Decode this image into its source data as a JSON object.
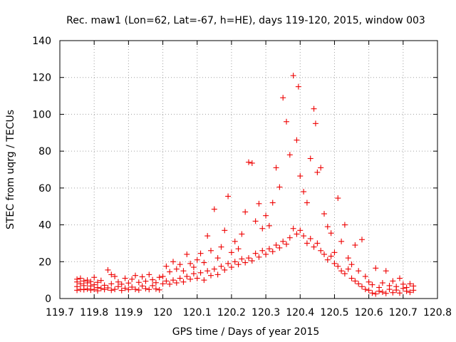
{
  "chart_data": {
    "type": "scatter",
    "title": "Rec. maw1 (Lon=62, Lat=-67, h=HE), days 119-120, 2015, window 003",
    "xlabel": "GPS time / Days of year 2015",
    "ylabel": "STEC from uqrg / TECUs",
    "xlim": [
      119.7,
      120.8
    ],
    "ylim": [
      0,
      140
    ],
    "xticks": [
      119.7,
      119.8,
      119.9,
      120.0,
      120.1,
      120.2,
      120.3,
      120.4,
      120.5,
      120.6,
      120.7,
      120.8
    ],
    "xtick_labels": [
      "119.7",
      "119.8",
      "119.9",
      "120",
      "120.1",
      "120.2",
      "120.3",
      "120.4",
      "120.5",
      "120.6",
      "120.7",
      "120.8"
    ],
    "yticks": [
      0,
      20,
      40,
      60,
      80,
      100,
      120,
      140
    ],
    "ytick_labels": [
      "0",
      "20",
      "40",
      "60",
      "80",
      "100",
      "120",
      "140"
    ],
    "grid": true,
    "marker": "+",
    "color": "#ee0000",
    "series": [
      {
        "name": "STEC",
        "points": [
          [
            119.75,
            4.5
          ],
          [
            119.75,
            6.5
          ],
          [
            119.75,
            9.0
          ],
          [
            119.75,
            10.5
          ],
          [
            119.76,
            5.0
          ],
          [
            119.76,
            8.0
          ],
          [
            119.76,
            11.0
          ],
          [
            119.77,
            4.8
          ],
          [
            119.77,
            7.0
          ],
          [
            119.77,
            9.5
          ],
          [
            119.78,
            5.2
          ],
          [
            119.78,
            8.5
          ],
          [
            119.78,
            10.0
          ],
          [
            119.79,
            4.6
          ],
          [
            119.79,
            6.8
          ],
          [
            119.79,
            9.2
          ],
          [
            119.8,
            5.0
          ],
          [
            119.8,
            7.5
          ],
          [
            119.8,
            11.5
          ],
          [
            119.81,
            4.2
          ],
          [
            119.81,
            6.0
          ],
          [
            119.81,
            8.8
          ],
          [
            119.82,
            5.5
          ],
          [
            119.82,
            9.8
          ],
          [
            119.83,
            4.9
          ],
          [
            119.83,
            7.2
          ],
          [
            119.84,
            5.8
          ],
          [
            119.84,
            15.5
          ],
          [
            119.85,
            4.5
          ],
          [
            119.85,
            8.0
          ],
          [
            119.85,
            13.0
          ],
          [
            119.86,
            5.0
          ],
          [
            119.86,
            12.0
          ],
          [
            119.87,
            6.5
          ],
          [
            119.87,
            9.0
          ],
          [
            119.88,
            4.4
          ],
          [
            119.88,
            7.8
          ],
          [
            119.89,
            5.6
          ],
          [
            119.89,
            11.0
          ],
          [
            119.9,
            4.8
          ],
          [
            119.9,
            8.4
          ],
          [
            119.91,
            6.2
          ],
          [
            119.91,
            10.5
          ],
          [
            119.92,
            5.0
          ],
          [
            119.92,
            12.5
          ],
          [
            119.93,
            4.6
          ],
          [
            119.93,
            8.8
          ],
          [
            119.94,
            6.8
          ],
          [
            119.94,
            11.8
          ],
          [
            119.95,
            5.4
          ],
          [
            119.95,
            9.4
          ],
          [
            119.96,
            4.9
          ],
          [
            119.96,
            13.0
          ],
          [
            119.97,
            7.0
          ],
          [
            119.97,
            10.2
          ],
          [
            119.98,
            5.2
          ],
          [
            119.98,
            8.6
          ],
          [
            119.99,
            4.7
          ],
          [
            119.99,
            11.5
          ],
          [
            120.0,
            8.0
          ],
          [
            120.0,
            12.0
          ],
          [
            120.01,
            9.5
          ],
          [
            120.01,
            17.5
          ],
          [
            120.02,
            7.8
          ],
          [
            120.02,
            14.5
          ],
          [
            120.03,
            10.0
          ],
          [
            120.03,
            20.0
          ],
          [
            120.04,
            8.5
          ],
          [
            120.04,
            16.0
          ],
          [
            120.05,
            11.0
          ],
          [
            120.05,
            18.5
          ],
          [
            120.06,
            9.0
          ],
          [
            120.06,
            15.0
          ],
          [
            120.07,
            12.0
          ],
          [
            120.07,
            24.0
          ],
          [
            120.08,
            10.5
          ],
          [
            120.08,
            19.0
          ],
          [
            120.09,
            13.5
          ],
          [
            120.09,
            17.0
          ],
          [
            120.1,
            11.0
          ],
          [
            120.1,
            21.0
          ],
          [
            120.11,
            14.0
          ],
          [
            120.11,
            24.5
          ],
          [
            120.12,
            10.0
          ],
          [
            120.12,
            19.5
          ],
          [
            120.13,
            15.0
          ],
          [
            120.13,
            34.0
          ],
          [
            120.14,
            12.5
          ],
          [
            120.14,
            26.0
          ],
          [
            120.15,
            16.0
          ],
          [
            120.15,
            48.5
          ],
          [
            120.16,
            13.0
          ],
          [
            120.16,
            22.0
          ],
          [
            120.17,
            17.5
          ],
          [
            120.17,
            28.0
          ],
          [
            120.18,
            15.5
          ],
          [
            120.18,
            37.0
          ],
          [
            120.19,
            19.0
          ],
          [
            120.19,
            55.5
          ],
          [
            120.2,
            17.0
          ],
          [
            120.2,
            25.0
          ],
          [
            120.21,
            20.0
          ],
          [
            120.21,
            31.0
          ],
          [
            120.22,
            18.5
          ],
          [
            120.22,
            27.0
          ],
          [
            120.23,
            21.5
          ],
          [
            120.23,
            35.0
          ],
          [
            120.24,
            19.5
          ],
          [
            120.24,
            47.0
          ],
          [
            120.25,
            22.0
          ],
          [
            120.25,
            74.0
          ],
          [
            120.26,
            20.5
          ],
          [
            120.26,
            73.5
          ],
          [
            120.27,
            24.5
          ],
          [
            120.27,
            42.0
          ],
          [
            120.28,
            22.5
          ],
          [
            120.28,
            51.5
          ],
          [
            120.29,
            26.0
          ],
          [
            120.29,
            38.0
          ],
          [
            120.3,
            24.0
          ],
          [
            120.3,
            45.0
          ],
          [
            120.31,
            27.0
          ],
          [
            120.31,
            39.5
          ],
          [
            120.32,
            25.5
          ],
          [
            120.32,
            52.0
          ],
          [
            120.33,
            29.0
          ],
          [
            120.33,
            71.0
          ],
          [
            120.34,
            27.5
          ],
          [
            120.34,
            60.5
          ],
          [
            120.35,
            31.0
          ],
          [
            120.35,
            109.0
          ],
          [
            120.36,
            29.5
          ],
          [
            120.36,
            96.0
          ],
          [
            120.37,
            33.0
          ],
          [
            120.37,
            78.0
          ],
          [
            120.38,
            38.0
          ],
          [
            120.38,
            121.0
          ],
          [
            120.39,
            35.0
          ],
          [
            120.39,
            86.0
          ],
          [
            120.395,
            115.0
          ],
          [
            120.4,
            37.0
          ],
          [
            120.4,
            66.5
          ],
          [
            120.41,
            34.0
          ],
          [
            120.41,
            58.0
          ],
          [
            120.42,
            30.0
          ],
          [
            120.42,
            52.0
          ],
          [
            120.43,
            32.5
          ],
          [
            120.43,
            76.0
          ],
          [
            120.44,
            28.0
          ],
          [
            120.44,
            103.0
          ],
          [
            120.445,
            95.0
          ],
          [
            120.45,
            30.0
          ],
          [
            120.45,
            68.5
          ],
          [
            120.46,
            26.0
          ],
          [
            120.46,
            71.0
          ],
          [
            120.47,
            24.0
          ],
          [
            120.47,
            46.0
          ],
          [
            120.48,
            21.0
          ],
          [
            120.48,
            39.0
          ],
          [
            120.49,
            23.0
          ],
          [
            120.49,
            35.5
          ],
          [
            120.5,
            19.0
          ],
          [
            120.5,
            25.0
          ],
          [
            120.51,
            17.5
          ],
          [
            120.51,
            54.5
          ],
          [
            120.52,
            15.0
          ],
          [
            120.52,
            31.0
          ],
          [
            120.53,
            13.5
          ],
          [
            120.53,
            40.0
          ],
          [
            120.54,
            16.0
          ],
          [
            120.54,
            22.0
          ],
          [
            120.55,
            11.0
          ],
          [
            120.55,
            18.5
          ],
          [
            120.56,
            9.5
          ],
          [
            120.56,
            29.0
          ],
          [
            120.57,
            8.0
          ],
          [
            120.57,
            15.0
          ],
          [
            120.58,
            6.5
          ],
          [
            120.58,
            32.0
          ],
          [
            120.59,
            5.0
          ],
          [
            120.59,
            12.0
          ],
          [
            120.6,
            4.5
          ],
          [
            120.6,
            9.0
          ],
          [
            120.61,
            3.0
          ],
          [
            120.61,
            7.5
          ],
          [
            120.62,
            2.5
          ],
          [
            120.62,
            16.5
          ],
          [
            120.63,
            4.0
          ],
          [
            120.63,
            6.0
          ],
          [
            120.64,
            3.5
          ],
          [
            120.64,
            8.5
          ],
          [
            120.65,
            2.8
          ],
          [
            120.65,
            15.0
          ],
          [
            120.66,
            5.0
          ],
          [
            120.66,
            7.0
          ],
          [
            120.67,
            3.2
          ],
          [
            120.67,
            9.5
          ],
          [
            120.68,
            4.6
          ],
          [
            120.68,
            6.5
          ],
          [
            120.69,
            3.0
          ],
          [
            120.69,
            11.0
          ],
          [
            120.7,
            5.5
          ],
          [
            120.7,
            7.8
          ],
          [
            120.71,
            4.0
          ],
          [
            120.71,
            6.0
          ],
          [
            120.72,
            3.4
          ],
          [
            120.72,
            8.0
          ],
          [
            120.73,
            4.5
          ],
          [
            120.73,
            6.8
          ]
        ]
      }
    ]
  }
}
